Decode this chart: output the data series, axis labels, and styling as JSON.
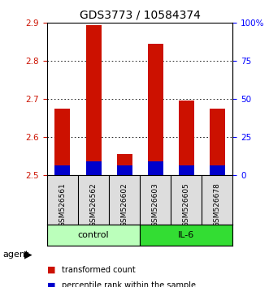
{
  "title": "GDS3773 / 10584374",
  "samples": [
    "GSM526561",
    "GSM526562",
    "GSM526602",
    "GSM526603",
    "GSM526605",
    "GSM526678"
  ],
  "red_values": [
    2.675,
    2.895,
    2.555,
    2.845,
    2.695,
    2.675
  ],
  "blue_values": [
    2.525,
    2.535,
    2.525,
    2.535,
    2.525,
    2.525
  ],
  "ylim": [
    2.5,
    2.9
  ],
  "yticks": [
    2.5,
    2.6,
    2.7,
    2.8,
    2.9
  ],
  "right_yticks_pct": [
    0,
    25,
    50,
    75,
    100
  ],
  "right_ylabels": [
    "0",
    "25",
    "50",
    "75",
    "100%"
  ],
  "groups": [
    {
      "label": "control",
      "indices": [
        0,
        1,
        2
      ],
      "color": "#bbffbb"
    },
    {
      "label": "IL-6",
      "indices": [
        3,
        4,
        5
      ],
      "color": "#33dd33"
    }
  ],
  "bar_width": 0.5,
  "red_color": "#cc1100",
  "blue_color": "#0000cc",
  "title_fontsize": 10,
  "tick_fontsize": 7.5,
  "sample_fontsize": 6.5,
  "group_fontsize": 8,
  "legend_fontsize": 7,
  "agent_fontsize": 8
}
